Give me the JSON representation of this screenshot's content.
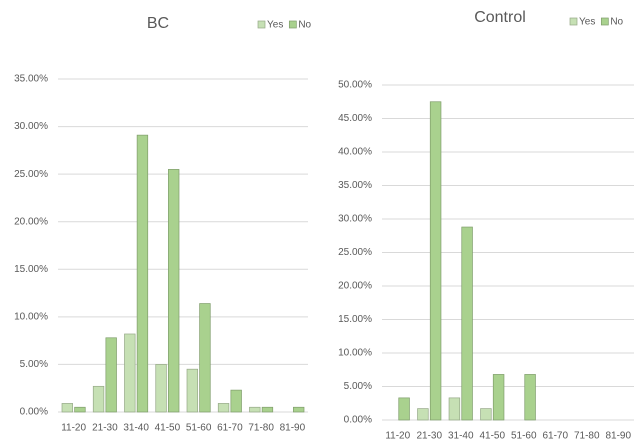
{
  "chart_data": [
    {
      "type": "bar",
      "title": "BC",
      "categories": [
        "11-20",
        "21-30",
        "31-40",
        "41-50",
        "51-60",
        "61-70",
        "71-80",
        "81-90"
      ],
      "series": [
        {
          "name": "Yes",
          "color": "#c6e0b4",
          "values": [
            0.9,
            2.7,
            8.2,
            5.0,
            4.5,
            0.9,
            0.5,
            0
          ]
        },
        {
          "name": "No",
          "color": "#a9d18e",
          "values": [
            0.5,
            7.8,
            29.1,
            25.5,
            11.4,
            2.3,
            0.5,
            0.5
          ]
        }
      ],
      "ylim": [
        0,
        35
      ],
      "yticks": [
        {
          "value": 0,
          "label": "0.00%"
        },
        {
          "value": 5,
          "label": "5.00%"
        },
        {
          "value": 10,
          "label": "10.00%"
        },
        {
          "value": 15,
          "label": "15.00%"
        },
        {
          "value": 20,
          "label": "20.00%"
        },
        {
          "value": 25,
          "label": "25.00%"
        },
        {
          "value": 30,
          "label": "30.00%"
        },
        {
          "value": 35,
          "label": "35.00%"
        }
      ],
      "grid": true,
      "legend": "top-right"
    },
    {
      "type": "bar",
      "title": "Control",
      "categories": [
        "11-20",
        "21-30",
        "31-40",
        "41-50",
        "51-60",
        "61-70",
        "71-80",
        "81-90"
      ],
      "series": [
        {
          "name": "Yes",
          "color": "#c6e0b4",
          "values": [
            0,
            1.7,
            3.3,
            1.7,
            0,
            0,
            0,
            0
          ]
        },
        {
          "name": "No",
          "color": "#a9d18e",
          "values": [
            3.3,
            47.5,
            28.8,
            6.8,
            6.8,
            0,
            0,
            0
          ]
        }
      ],
      "ylim": [
        0,
        50
      ],
      "yticks": [
        {
          "value": 0,
          "label": "0.00%"
        },
        {
          "value": 5,
          "label": "5.00%"
        },
        {
          "value": 10,
          "label": "10.00%"
        },
        {
          "value": 15,
          "label": "15.00%"
        },
        {
          "value": 20,
          "label": "20.00%"
        },
        {
          "value": 25,
          "label": "25.00%"
        },
        {
          "value": 30,
          "label": "30.00%"
        },
        {
          "value": 35,
          "label": "35.00%"
        },
        {
          "value": 40,
          "label": "40.00%"
        },
        {
          "value": 45,
          "label": "45.00%"
        },
        {
          "value": 50,
          "label": "50.00%"
        }
      ],
      "grid": true,
      "legend": "top-right"
    }
  ]
}
